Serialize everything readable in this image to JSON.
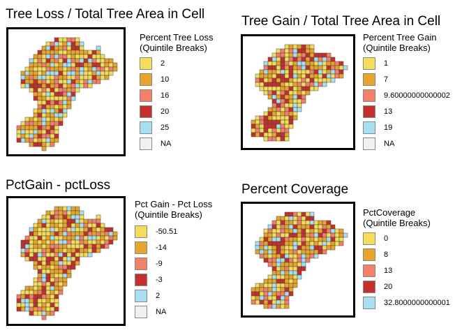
{
  "colors": {
    "c1": "#F5DC5A",
    "c2": "#E8A52B",
    "c3": "#F4806A",
    "c4": "#C4302B",
    "c5": "#A9DFF3",
    "na": "#F0F0F0",
    "outline": "#444444"
  },
  "panels": [
    {
      "title": "Tree Loss / Total Tree Area in Cell",
      "legend_title": [
        "Percent Tree Loss",
        "(Quintile Breaks)"
      ],
      "legend_items": [
        {
          "label": "2",
          "color": "c1"
        },
        {
          "label": "10",
          "color": "c2"
        },
        {
          "label": "16",
          "color": "c3"
        },
        {
          "label": "20",
          "color": "c4"
        },
        {
          "label": "25",
          "color": "c5"
        },
        {
          "label": "NA",
          "color": "na"
        }
      ]
    },
    {
      "title": "Tree Gain / Total Tree Area in Cell",
      "legend_title": [
        "Percent Tree Gain",
        "(Quintile Breaks)"
      ],
      "legend_items": [
        {
          "label": "1",
          "color": "c1"
        },
        {
          "label": "7",
          "color": "c2"
        },
        {
          "label": "9.60000000000002",
          "color": "c3"
        },
        {
          "label": "13",
          "color": "c4"
        },
        {
          "label": "19",
          "color": "c5"
        },
        {
          "label": "NA",
          "color": "na"
        }
      ]
    },
    {
      "title": "PctGain - pctLoss",
      "legend_title": [
        "Pct Gain - Pct Loss",
        "(Quintile Breaks)"
      ],
      "legend_items": [
        {
          "label": "-50.51",
          "color": "c1"
        },
        {
          "label": "-14",
          "color": "c2"
        },
        {
          "label": "-9",
          "color": "c3"
        },
        {
          "label": "-3",
          "color": "c4"
        },
        {
          "label": "2",
          "color": "c5"
        },
        {
          "label": "NA",
          "color": "na"
        }
      ]
    },
    {
      "title": "Percent Coverage",
      "legend_title": [
        "PctCoverage",
        "(Quintile Breaks)"
      ],
      "legend_items": [
        {
          "label": "0",
          "color": "c1"
        },
        {
          "label": "8",
          "color": "c2"
        },
        {
          "label": "13",
          "color": "c3"
        },
        {
          "label": "20",
          "color": "c4"
        },
        {
          "label": "32.8000000000001",
          "color": "c5"
        }
      ]
    }
  ]
}
